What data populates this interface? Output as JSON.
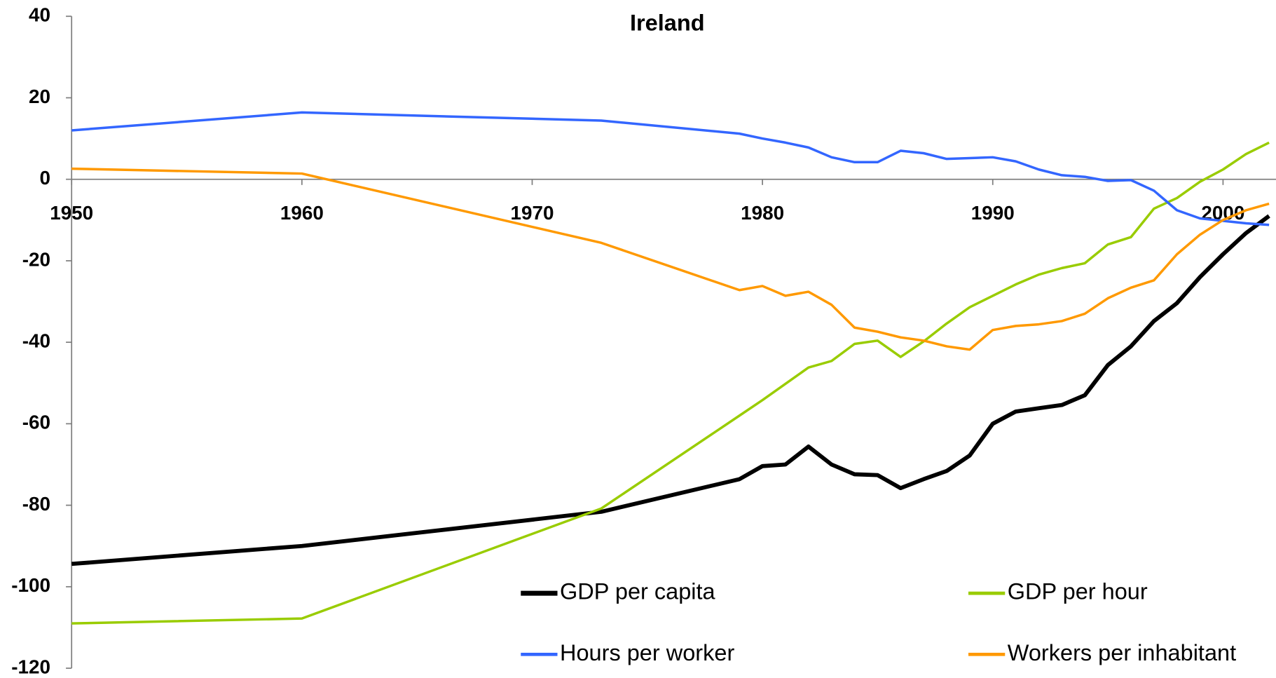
{
  "chart_data": {
    "type": "line",
    "title": "Ireland",
    "x": [
      1950,
      1960,
      1973,
      1979,
      1980,
      1981,
      1982,
      1983,
      1984,
      1985,
      1986,
      1987,
      1988,
      1989,
      1990,
      1991,
      1992,
      1993,
      1994,
      1995,
      1996,
      1997,
      1998,
      1999,
      2000,
      2001,
      2002
    ],
    "series": [
      {
        "name": "GDP per capita",
        "color": "#000000",
        "values": [
          -94.4,
          -90,
          -81.6,
          -73.6,
          -70.4,
          -70,
          -65.6,
          -70,
          -72.4,
          -72.6,
          -75.8,
          -73.6,
          -71.6,
          -67.8,
          -60,
          -57,
          -56.2,
          -55.4,
          -53,
          -45.6,
          -41,
          -34.8,
          -30.4,
          -24,
          -18.4,
          -13.2,
          -9
        ]
      },
      {
        "name": "GDP per hour",
        "color": "#99cc00",
        "values": [
          -109,
          -107.8,
          -80.8,
          -58,
          -54.2,
          -50.2,
          -46.2,
          -44.6,
          -40.4,
          -39.6,
          -43.6,
          -39.8,
          -35.4,
          -31.4,
          -28.6,
          -25.8,
          -23.4,
          -21.8,
          -20.6,
          -16,
          -14.2,
          -7.2,
          -4.6,
          -0.6,
          2.4,
          6.2,
          9
        ]
      },
      {
        "name": "Hours per worker",
        "color": "#3366ff",
        "values": [
          12,
          16.4,
          14.4,
          11.2,
          10,
          9,
          7.8,
          5.4,
          4.2,
          4.2,
          7,
          6.4,
          5,
          5.2,
          5.4,
          4.4,
          2.4,
          1,
          0.6,
          -0.4,
          -0.2,
          -2.8,
          -7.6,
          -9.6,
          -10.2,
          -10.8,
          -11.2
        ]
      },
      {
        "name": "Workers per inhabitant",
        "color": "#ff9900",
        "values": [
          2.6,
          1.4,
          -15.6,
          -27.2,
          -26.2,
          -28.6,
          -27.6,
          -30.8,
          -36.4,
          -37.4,
          -38.8,
          -39.6,
          -41,
          -41.8,
          -37,
          -36,
          -35.6,
          -34.8,
          -33,
          -29.2,
          -26.6,
          -24.8,
          -18.4,
          -13.6,
          -10,
          -7.6,
          -6
        ]
      }
    ],
    "xlim": [
      1950,
      2002.3
    ],
    "xticks": [
      1950,
      1960,
      1970,
      1980,
      1990,
      2000
    ],
    "ylim": [
      -120,
      40
    ],
    "yticks": [
      -120,
      -100,
      -80,
      -60,
      -40,
      -20,
      0,
      20,
      40
    ]
  }
}
